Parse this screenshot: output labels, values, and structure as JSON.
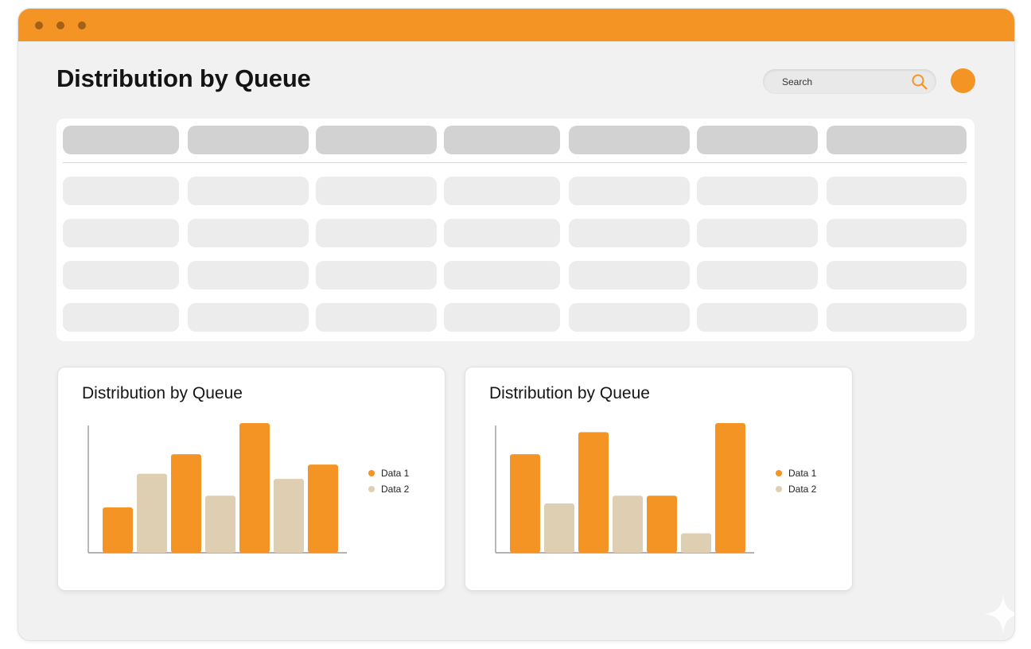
{
  "header": {
    "title": "Distribution by Queue",
    "search_placeholder": "Search"
  },
  "colors": {
    "accent": "#f39425",
    "data1": "#f39425",
    "data2": "#dfcfb2"
  },
  "icons": {
    "search": "search-icon",
    "window_dots": "window-dot"
  },
  "table": {
    "columns": 7,
    "body_rows": 4
  },
  "charts": [
    {
      "title": "Distribution by Queue",
      "legend": [
        "Data 1",
        "Data 2"
      ]
    },
    {
      "title": "Distribution by Queue",
      "legend": [
        "Data 1",
        "Data 2"
      ]
    }
  ],
  "chart_data": [
    {
      "type": "bar",
      "title": "Distribution by Queue",
      "legend_position": "right",
      "grid": false,
      "ylim": [
        0,
        100
      ],
      "bars": [
        {
          "series": "Data 1",
          "value": 35
        },
        {
          "series": "Data 2",
          "value": 61
        },
        {
          "series": "Data 1",
          "value": 76
        },
        {
          "series": "Data 2",
          "value": 44
        },
        {
          "series": "Data 1",
          "value": 100
        },
        {
          "series": "Data 2",
          "value": 57
        },
        {
          "series": "Data 1",
          "value": 68
        }
      ],
      "series": [
        {
          "name": "Data 1"
        },
        {
          "name": "Data 2"
        }
      ]
    },
    {
      "type": "bar",
      "title": "Distribution by Queue",
      "legend_position": "right",
      "grid": false,
      "ylim": [
        0,
        100
      ],
      "bars": [
        {
          "series": "Data 1",
          "value": 76
        },
        {
          "series": "Data 2",
          "value": 38
        },
        {
          "series": "Data 1",
          "value": 93
        },
        {
          "series": "Data 2",
          "value": 44
        },
        {
          "series": "Data 1",
          "value": 44
        },
        {
          "series": "Data 2",
          "value": 15
        },
        {
          "series": "Data 1",
          "value": 100
        }
      ],
      "series": [
        {
          "name": "Data 1"
        },
        {
          "name": "Data 2"
        }
      ]
    }
  ]
}
